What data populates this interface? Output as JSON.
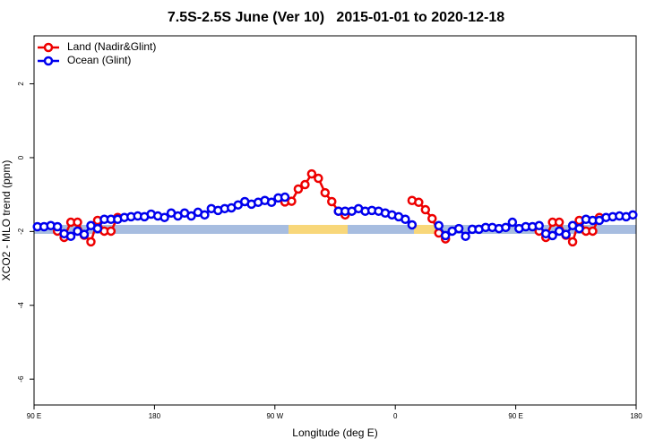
{
  "chart_data": {
    "type": "line",
    "title": "7.5S-2.5S June (Ver 10)   2015-01-01 to 2020-12-18",
    "x_label": "Longitude (deg E)",
    "y_label": "XCO2 - MLO trend (ppm)",
    "xlim": [
      90,
      540
    ],
    "ylim": [
      -6.7,
      3.3
    ],
    "xticks": [
      {
        "value": 90,
        "label": "90 E"
      },
      180,
      {
        "value": 270,
        "label": "90 W"
      },
      {
        "value": 360,
        "label": "0"
      },
      {
        "value": 450,
        "label": "90 E"
      },
      {
        "value": 540,
        "label": "180"
      }
    ],
    "yticks": [
      -6,
      -4,
      -2,
      0,
      2
    ],
    "legend": "top-left",
    "x": [
      92.5,
      97.5,
      102.5,
      107.5,
      112.5,
      117.5,
      122.5,
      127.5,
      132.5,
      137.5,
      142.5,
      147.5,
      152.5,
      157.5,
      162.5,
      167.5,
      172.5,
      177.5,
      182.5,
      187.5,
      192.5,
      197.5,
      202.5,
      207.5,
      212.5,
      217.5,
      222.5,
      227.5,
      232.5,
      237.5,
      242.5,
      247.5,
      252.5,
      257.5,
      262.5,
      267.5,
      272.5,
      277.5,
      282.5,
      287.5,
      292.5,
      297.5,
      302.5,
      307.5,
      312.5,
      317.5,
      322.5,
      327.5,
      332.5,
      337.5,
      342.5,
      347.5,
      352.5,
      357.5,
      362.5,
      367.5,
      372.5,
      377.5,
      382.5,
      387.5,
      392.5,
      397.5,
      402.5,
      407.5,
      412.5,
      417.5,
      422.5,
      427.5,
      432.5,
      437.5,
      442.5,
      447.5,
      452.5,
      457.5,
      462.5,
      467.5,
      472.5,
      477.5,
      482.5,
      487.5,
      492.5,
      497.5,
      502.5,
      507.5,
      512.5,
      517.5,
      522.5,
      527.5,
      532.5,
      537.5
    ],
    "series": [
      {
        "name": "Land (Nadir&Glint)",
        "color": "#ee0000",
        "values": [
          null,
          null,
          null,
          -1.99,
          -2.16,
          -1.75,
          -1.75,
          -2.1,
          -2.28,
          -1.7,
          -1.99,
          -1.99,
          -1.62,
          null,
          null,
          null,
          null,
          null,
          null,
          null,
          null,
          null,
          null,
          null,
          null,
          null,
          null,
          null,
          null,
          null,
          null,
          null,
          null,
          null,
          null,
          null,
          null,
          -1.2,
          -1.18,
          -0.85,
          -0.73,
          -0.44,
          -0.56,
          -0.95,
          -1.19,
          -1.45,
          -1.55,
          null,
          null,
          null,
          null,
          null,
          null,
          null,
          null,
          null,
          -1.16,
          -1.21,
          -1.41,
          -1.65,
          -2.04,
          -2.2,
          null,
          null,
          null,
          null,
          null,
          null,
          null,
          null,
          null,
          null,
          null,
          null,
          null,
          -1.99,
          -2.16,
          -1.75,
          -1.75,
          -2.1,
          -2.28,
          -1.7,
          -1.99,
          -1.99,
          -1.62,
          null,
          null,
          null,
          null,
          null
        ]
      },
      {
        "name": "Ocean (Glint)",
        "color": "#0000ee",
        "values": [
          -1.87,
          -1.87,
          -1.84,
          -1.87,
          -2.06,
          -2.13,
          -1.99,
          -2.08,
          -1.84,
          -1.92,
          -1.67,
          -1.67,
          -1.67,
          -1.62,
          -1.6,
          -1.58,
          -1.6,
          -1.53,
          -1.58,
          -1.62,
          -1.5,
          -1.58,
          -1.5,
          -1.58,
          -1.48,
          -1.55,
          -1.38,
          -1.43,
          -1.38,
          -1.36,
          -1.28,
          -1.19,
          -1.26,
          -1.21,
          -1.16,
          -1.21,
          -1.09,
          -1.07,
          null,
          null,
          null,
          null,
          null,
          null,
          null,
          -1.45,
          -1.45,
          -1.45,
          -1.38,
          -1.45,
          -1.43,
          -1.45,
          -1.5,
          -1.55,
          -1.6,
          -1.67,
          -1.82,
          null,
          null,
          null,
          -1.84,
          -2.11,
          -1.99,
          -1.92,
          -2.13,
          -1.94,
          -1.94,
          -1.89,
          -1.89,
          -1.92,
          -1.89,
          -1.75,
          -1.92,
          -1.87,
          -1.87,
          -1.84,
          -2.06,
          -2.11,
          -1.99,
          -2.08,
          -1.84,
          -1.92,
          -1.67,
          -1.7,
          -1.7,
          -1.62,
          -1.6,
          -1.58,
          -1.6,
          -1.55
        ]
      }
    ]
  }
}
